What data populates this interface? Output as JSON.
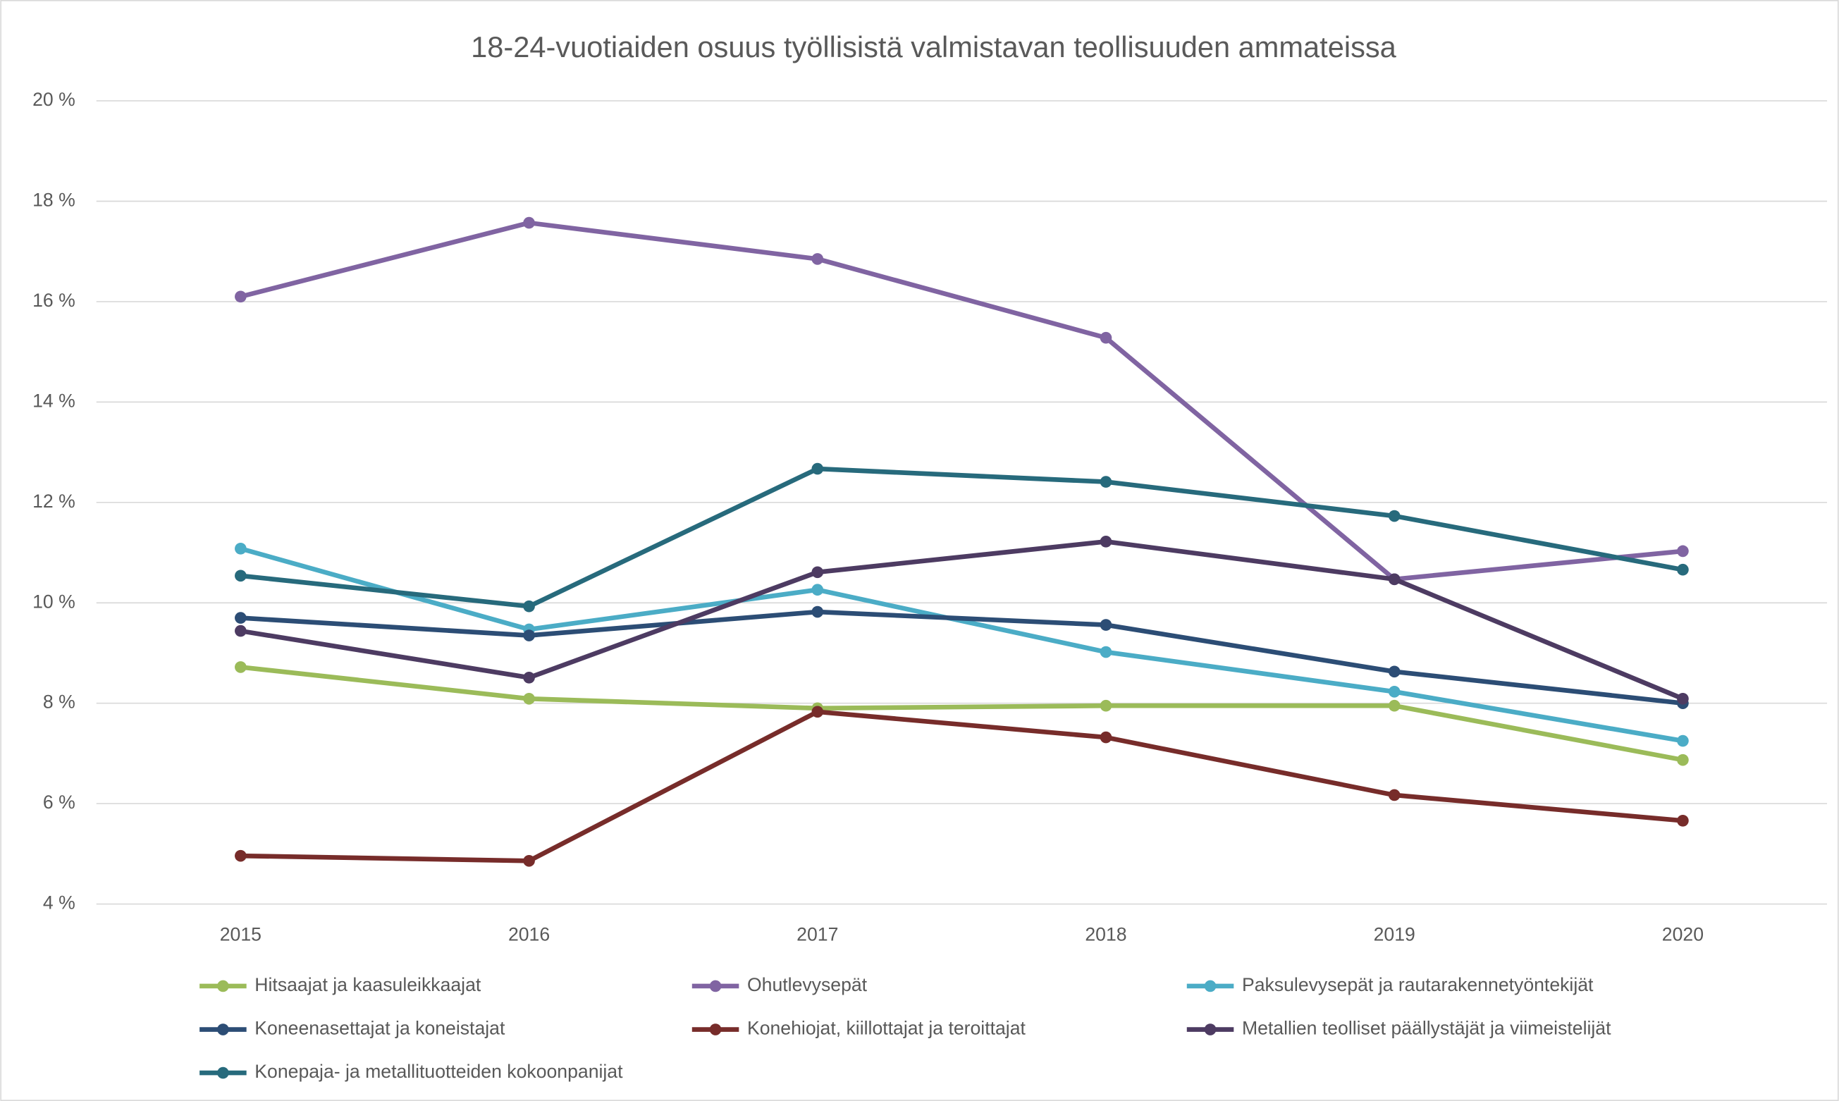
{
  "chart_data": {
    "type": "line",
    "title": "18-24-vuotiaiden osuus työllisistä valmistavan teollisuuden ammateissa",
    "categories": [
      "2015",
      "2016",
      "2017",
      "2018",
      "2019",
      "2020"
    ],
    "series": [
      {
        "name": "Hitsaajat ja kaasuleikkaajat",
        "color": "#9bbb59",
        "values": [
          8.72,
          8.09,
          7.9,
          7.95,
          7.95,
          6.87
        ]
      },
      {
        "name": "Ohutlevysepät",
        "color": "#8064a2",
        "values": [
          16.1,
          17.57,
          16.85,
          15.28,
          10.47,
          11.03
        ]
      },
      {
        "name": "Paksulevysepät ja rautarakennetyöntekijät",
        "color": "#4bacc6",
        "values": [
          11.08,
          9.47,
          10.26,
          9.02,
          8.23,
          7.25
        ]
      },
      {
        "name": "Koneenasettajat ja koneistajat",
        "color": "#2c4d75",
        "values": [
          9.7,
          9.35,
          9.82,
          9.56,
          8.63,
          8.0
        ]
      },
      {
        "name": "Konehiojat, kiillottajat ja teroittajat",
        "color": "#772c2a",
        "values": [
          4.96,
          4.86,
          7.83,
          7.32,
          6.17,
          5.66
        ]
      },
      {
        "name": "Metallien teolliset päällystäjät ja viimeistelijät",
        "color": "#4d3b62",
        "values": [
          9.44,
          8.51,
          10.61,
          11.22,
          10.47,
          8.09
        ]
      },
      {
        "name": "Konepaja- ja metallituotteiden kokoonpanijat",
        "color": "#276a7c",
        "values": [
          10.54,
          9.93,
          12.67,
          12.41,
          11.73,
          10.66
        ]
      }
    ],
    "ylim": [
      4,
      20
    ],
    "yticks": [
      {
        "value": 4,
        "label": "4 %"
      },
      {
        "value": 6,
        "label": "6 %"
      },
      {
        "value": 8,
        "label": "8 %"
      },
      {
        "value": 10,
        "label": "10 %"
      },
      {
        "value": 12,
        "label": "12 %"
      },
      {
        "value": 14,
        "label": "14 %"
      },
      {
        "value": 16,
        "label": "16 %"
      },
      {
        "value": 18,
        "label": "18 %"
      },
      {
        "value": 20,
        "label": "20 %"
      }
    ],
    "grid": true,
    "legend": "bottom"
  }
}
